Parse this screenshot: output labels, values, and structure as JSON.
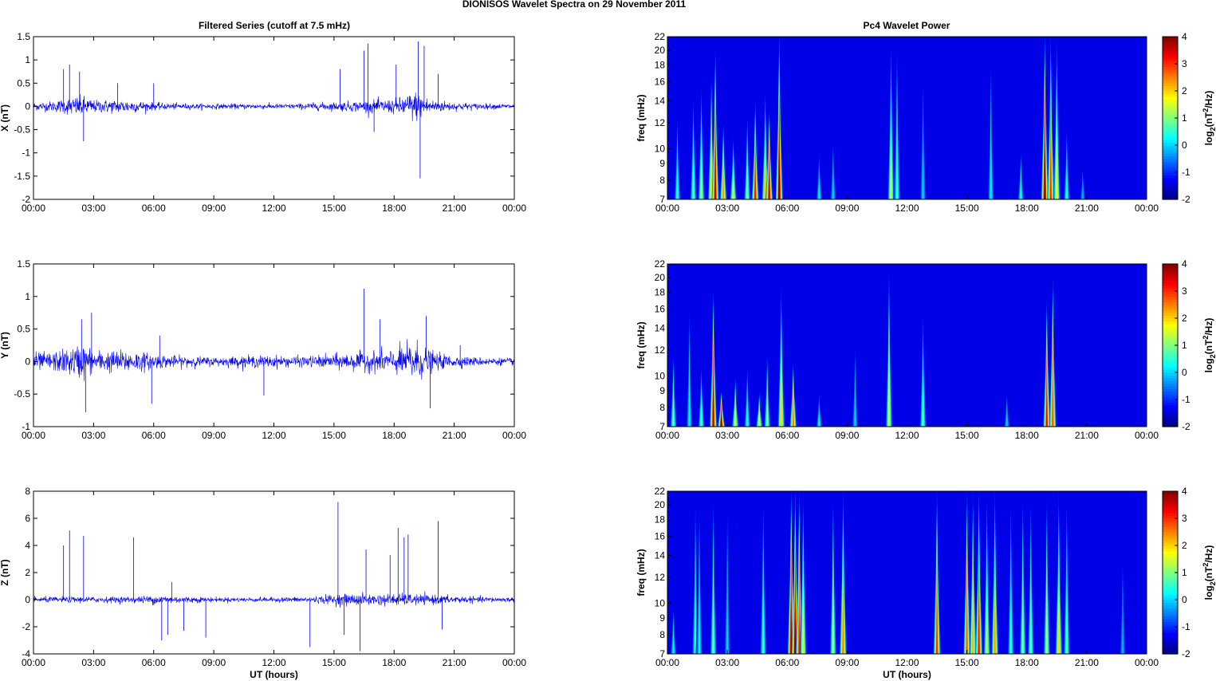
{
  "figure": {
    "suptitle": "DIONISOS Wavelet Spectra on 29 November  2011",
    "left_title": "Filtered Series (cutoff at 7.5 mHz)",
    "right_title": "Pc4 Wavelet Power",
    "time_xlabel": "UT (hours)",
    "freq_ylabel": "freq (mHz)",
    "cbar_label_prefix": "log",
    "cbar_label_sub": "2",
    "cbar_label_mid": "(nT",
    "cbar_label_sup": "2",
    "cbar_label_suffix": "/Hz)",
    "line_color": "#0000ff"
  },
  "chart_data": [
    {
      "type": "line",
      "title": "Filtered Series (cutoff at 7.5 mHz)",
      "xlabel": "",
      "ylabel": "X (nT)",
      "xlim": [
        0,
        24
      ],
      "ylim": [
        -2,
        1.5
      ],
      "x_ticks": [
        "00:00",
        "03:00",
        "06:00",
        "09:00",
        "12:00",
        "15:00",
        "18:00",
        "21:00",
        "00:00"
      ],
      "y_ticks": [
        "1.5",
        "1",
        "0.5",
        "0",
        "-0.5",
        "-1",
        "-1.5",
        "-2"
      ],
      "y_tick_values": [
        1.5,
        1,
        0.5,
        0,
        -0.5,
        -1,
        -1.5,
        -2
      ],
      "noise_profile": {
        "hours": [
          0,
          1,
          2,
          2.5,
          3,
          4,
          5,
          6,
          7,
          8,
          9,
          10,
          11,
          12,
          13,
          14,
          15,
          16,
          17,
          18,
          18.5,
          19,
          19.5,
          20,
          21,
          22,
          23,
          24
        ],
        "amplitude_nT": [
          0.08,
          0.1,
          0.18,
          0.2,
          0.12,
          0.13,
          0.12,
          0.07,
          0.06,
          0.05,
          0.05,
          0.05,
          0.05,
          0.05,
          0.05,
          0.07,
          0.08,
          0.1,
          0.12,
          0.14,
          0.2,
          0.3,
          0.2,
          0.12,
          0.08,
          0.06,
          0.05,
          0.05
        ]
      },
      "spikes": [
        {
          "hour": 1.5,
          "value": 0.8
        },
        {
          "hour": 1.8,
          "value": 0.9
        },
        {
          "hour": 2.3,
          "value": 0.75
        },
        {
          "hour": 2.5,
          "value": -0.75
        },
        {
          "hour": 4.2,
          "value": 0.5
        },
        {
          "hour": 6.0,
          "value": 0.5
        },
        {
          "hour": 15.3,
          "value": 0.8
        },
        {
          "hour": 16.5,
          "value": 1.2
        },
        {
          "hour": 16.7,
          "value": 1.35
        },
        {
          "hour": 17.0,
          "value": -0.55
        },
        {
          "hour": 18.1,
          "value": 0.9
        },
        {
          "hour": 19.2,
          "value": 1.4
        },
        {
          "hour": 19.3,
          "value": -1.55
        },
        {
          "hour": 19.5,
          "value": 1.3
        },
        {
          "hour": 20.2,
          "value": 0.7
        }
      ]
    },
    {
      "type": "line",
      "title": "",
      "xlabel": "",
      "ylabel": "Y (nT)",
      "xlim": [
        0,
        24
      ],
      "ylim": [
        -1,
        1.5
      ],
      "x_ticks": [
        "00:00",
        "03:00",
        "06:00",
        "09:00",
        "12:00",
        "15:00",
        "18:00",
        "21:00",
        "00:00"
      ],
      "y_ticks": [
        "1.5",
        "1",
        "0.5",
        "0",
        "-0.5",
        "-1"
      ],
      "y_tick_values": [
        1.5,
        1,
        0.5,
        0,
        -0.5,
        -1
      ],
      "noise_profile": {
        "hours": [
          0,
          1,
          2,
          2.5,
          3,
          4,
          5,
          6,
          7,
          8,
          9,
          10,
          11,
          12,
          13,
          14,
          15,
          16,
          17,
          18,
          18.5,
          19,
          19.5,
          20,
          21,
          22,
          23,
          24
        ],
        "amplitude_nT": [
          0.12,
          0.13,
          0.2,
          0.25,
          0.15,
          0.15,
          0.15,
          0.1,
          0.08,
          0.07,
          0.06,
          0.07,
          0.08,
          0.08,
          0.07,
          0.08,
          0.1,
          0.12,
          0.14,
          0.16,
          0.22,
          0.3,
          0.2,
          0.12,
          0.08,
          0.06,
          0.05,
          0.05
        ]
      },
      "spikes": [
        {
          "hour": 2.4,
          "value": 0.65
        },
        {
          "hour": 2.9,
          "value": 0.75
        },
        {
          "hour": 2.6,
          "value": -0.78
        },
        {
          "hour": 5.9,
          "value": -0.65
        },
        {
          "hour": 6.3,
          "value": 0.4
        },
        {
          "hour": 11.5,
          "value": -0.52
        },
        {
          "hour": 16.5,
          "value": 1.12
        },
        {
          "hour": 17.3,
          "value": 0.65
        },
        {
          "hour": 19.6,
          "value": 0.7
        },
        {
          "hour": 19.8,
          "value": -0.72
        },
        {
          "hour": 21.3,
          "value": 0.25
        }
      ]
    },
    {
      "type": "line",
      "title": "",
      "xlabel": "UT (hours)",
      "ylabel": "Z (nT)",
      "xlim": [
        0,
        24
      ],
      "ylim": [
        -4,
        8
      ],
      "x_ticks": [
        "00:00",
        "03:00",
        "06:00",
        "09:00",
        "12:00",
        "15:00",
        "18:00",
        "21:00",
        "00:00"
      ],
      "y_ticks": [
        "8",
        "6",
        "4",
        "2",
        "0",
        "-2",
        "-4"
      ],
      "y_tick_values": [
        8,
        6,
        4,
        2,
        0,
        -2,
        -4
      ],
      "noise_profile": {
        "hours": [
          0,
          3,
          5,
          6,
          7,
          9,
          12,
          14,
          15,
          16,
          17,
          18,
          19,
          20,
          21,
          22,
          24
        ],
        "amplitude_nT": [
          0.18,
          0.2,
          0.2,
          0.3,
          0.25,
          0.15,
          0.15,
          0.2,
          0.35,
          0.4,
          0.35,
          0.4,
          0.35,
          0.3,
          0.25,
          0.2,
          0.15
        ]
      },
      "spikes": [
        {
          "hour": 1.5,
          "value": 4.0
        },
        {
          "hour": 1.8,
          "value": 5.1
        },
        {
          "hour": 2.5,
          "value": 4.7
        },
        {
          "hour": 5.0,
          "value": 4.6
        },
        {
          "hour": 6.4,
          "value": -3.0
        },
        {
          "hour": 6.7,
          "value": -2.6
        },
        {
          "hour": 6.9,
          "value": 1.3
        },
        {
          "hour": 7.5,
          "value": -2.3
        },
        {
          "hour": 8.6,
          "value": -2.8
        },
        {
          "hour": 13.8,
          "value": -3.5
        },
        {
          "hour": 15.2,
          "value": 7.2
        },
        {
          "hour": 15.5,
          "value": -2.6
        },
        {
          "hour": 16.3,
          "value": -3.8
        },
        {
          "hour": 16.6,
          "value": 3.7
        },
        {
          "hour": 17.8,
          "value": 3.3
        },
        {
          "hour": 18.2,
          "value": 5.3
        },
        {
          "hour": 18.5,
          "value": 4.6
        },
        {
          "hour": 18.7,
          "value": 4.8
        },
        {
          "hour": 20.2,
          "value": 5.8
        },
        {
          "hour": 20.4,
          "value": -2.2
        }
      ]
    },
    {
      "type": "heatmap",
      "title": "Pc4 Wavelet Power",
      "xlabel": "",
      "ylabel": "freq (mHz)",
      "xlim": [
        0,
        24
      ],
      "ylim": [
        7,
        22
      ],
      "log_y": true,
      "x_ticks": [
        "00:00",
        "03:00",
        "06:00",
        "09:00",
        "12:00",
        "15:00",
        "18:00",
        "21:00",
        "00:00"
      ],
      "y_ticks": [
        "22",
        "20",
        "18",
        "16",
        "14",
        "12",
        "10",
        "9",
        "8",
        "7"
      ],
      "y_tick_values": [
        22,
        20,
        18,
        16,
        14,
        12,
        10,
        9,
        8,
        7
      ],
      "colorbar": {
        "min": -2,
        "max": 4,
        "ticks": [
          "4",
          "3",
          "2",
          "1",
          "0",
          "-1",
          "-2"
        ]
      },
      "background_level": -2,
      "bursts": [
        {
          "hour": 0.5,
          "level": 0.5,
          "top_mHz": 13
        },
        {
          "hour": 1.3,
          "level": 0.8,
          "top_mHz": 15
        },
        {
          "hour": 1.7,
          "level": 1.2,
          "top_mHz": 16
        },
        {
          "hour": 2.2,
          "level": 2.0,
          "top_mHz": 17
        },
        {
          "hour": 2.4,
          "level": 3.6,
          "top_mHz": 20
        },
        {
          "hour": 2.8,
          "level": 2.4,
          "top_mHz": 12
        },
        {
          "hour": 3.3,
          "level": 1.5,
          "top_mHz": 11
        },
        {
          "hour": 4.0,
          "level": 1.0,
          "top_mHz": 13
        },
        {
          "hour": 4.4,
          "level": 3.2,
          "top_mHz": 14
        },
        {
          "hour": 4.9,
          "level": 2.2,
          "top_mHz": 15
        },
        {
          "hour": 5.1,
          "level": 3.5,
          "top_mHz": 13
        },
        {
          "hour": 5.6,
          "level": 4.0,
          "top_mHz": 22
        },
        {
          "hour": 7.6,
          "level": 0.2,
          "top_mHz": 10
        },
        {
          "hour": 8.3,
          "level": 0.0,
          "top_mHz": 11
        },
        {
          "hour": 11.2,
          "level": 1.4,
          "top_mHz": 22
        },
        {
          "hour": 11.5,
          "level": 0.6,
          "top_mHz": 22
        },
        {
          "hour": 12.8,
          "level": 0.0,
          "top_mHz": 18
        },
        {
          "hour": 16.2,
          "level": 0.2,
          "top_mHz": 20
        },
        {
          "hour": 17.7,
          "level": 0.4,
          "top_mHz": 10
        },
        {
          "hour": 18.9,
          "level": 4.0,
          "top_mHz": 22
        },
        {
          "hour": 19.2,
          "level": 3.0,
          "top_mHz": 22
        },
        {
          "hour": 19.5,
          "level": 1.8,
          "top_mHz": 22
        },
        {
          "hour": 20.0,
          "level": 0.5,
          "top_mHz": 12
        },
        {
          "hour": 20.8,
          "level": -0.2,
          "top_mHz": 9
        }
      ]
    },
    {
      "type": "heatmap",
      "title": "",
      "xlabel": "",
      "ylabel": "freq (mHz)",
      "xlim": [
        0,
        24
      ],
      "ylim": [
        7,
        22
      ],
      "log_y": true,
      "x_ticks": [
        "00:00",
        "03:00",
        "06:00",
        "09:00",
        "12:00",
        "15:00",
        "18:00",
        "21:00",
        "00:00"
      ],
      "y_ticks": [
        "22",
        "20",
        "18",
        "16",
        "14",
        "12",
        "10",
        "9",
        "8",
        "7"
      ],
      "y_tick_values": [
        22,
        20,
        18,
        16,
        14,
        12,
        10,
        9,
        8,
        7
      ],
      "colorbar": {
        "min": -2,
        "max": 4,
        "ticks": [
          "4",
          "3",
          "2",
          "1",
          "0",
          "-1",
          "-2"
        ]
      },
      "background_level": -2,
      "bursts": [
        {
          "hour": 0.3,
          "level": 0.8,
          "top_mHz": 12
        },
        {
          "hour": 1.1,
          "level": 0.2,
          "top_mHz": 17
        },
        {
          "hour": 1.7,
          "level": 0.8,
          "top_mHz": 11
        },
        {
          "hour": 2.3,
          "level": 3.6,
          "top_mHz": 18
        },
        {
          "hour": 2.7,
          "level": 3.8,
          "top_mHz": 9
        },
        {
          "hour": 3.4,
          "level": 1.6,
          "top_mHz": 10
        },
        {
          "hour": 4.0,
          "level": 0.5,
          "top_mHz": 11
        },
        {
          "hour": 4.6,
          "level": 1.6,
          "top_mHz": 9
        },
        {
          "hour": 5.0,
          "level": 1.0,
          "top_mHz": 12
        },
        {
          "hour": 5.7,
          "level": 2.0,
          "top_mHz": 19
        },
        {
          "hour": 6.3,
          "level": 2.6,
          "top_mHz": 11
        },
        {
          "hour": 7.6,
          "level": 0.3,
          "top_mHz": 9
        },
        {
          "hour": 9.4,
          "level": 0.0,
          "top_mHz": 13
        },
        {
          "hour": 11.1,
          "level": 1.4,
          "top_mHz": 22
        },
        {
          "hour": 12.8,
          "level": 0.8,
          "top_mHz": 16
        },
        {
          "hour": 17.0,
          "level": 0.0,
          "top_mHz": 9
        },
        {
          "hour": 19.0,
          "level": 3.2,
          "top_mHz": 17
        },
        {
          "hour": 19.3,
          "level": 2.8,
          "top_mHz": 20
        }
      ]
    },
    {
      "type": "heatmap",
      "title": "",
      "xlabel": "UT (hours)",
      "ylabel": "freq (mHz)",
      "xlim": [
        0,
        24
      ],
      "ylim": [
        7,
        22
      ],
      "log_y": true,
      "x_ticks": [
        "00:00",
        "03:00",
        "06:00",
        "09:00",
        "12:00",
        "15:00",
        "18:00",
        "21:00",
        "00:00"
      ],
      "y_ticks": [
        "22",
        "20",
        "18",
        "16",
        "14",
        "12",
        "10",
        "9",
        "8",
        "7"
      ],
      "y_tick_values": [
        22,
        20,
        18,
        16,
        14,
        12,
        10,
        9,
        8,
        7
      ],
      "colorbar": {
        "min": -2,
        "max": 4,
        "ticks": [
          "4",
          "3",
          "2",
          "1",
          "0",
          "-1",
          "-2"
        ]
      },
      "background_level": -2,
      "bursts": [
        {
          "hour": 0.3,
          "level": 0.2,
          "top_mHz": 10
        },
        {
          "hour": 1.4,
          "level": 0.6,
          "top_mHz": 22
        },
        {
          "hour": 1.6,
          "level": 0.2,
          "top_mHz": 22
        },
        {
          "hour": 2.3,
          "level": 0.8,
          "top_mHz": 22
        },
        {
          "hour": 3.0,
          "level": 0.0,
          "top_mHz": 22
        },
        {
          "hour": 4.8,
          "level": 0.6,
          "top_mHz": 22
        },
        {
          "hour": 6.2,
          "level": 3.8,
          "top_mHz": 22
        },
        {
          "hour": 6.4,
          "level": 4.0,
          "top_mHz": 22
        },
        {
          "hour": 6.6,
          "level": 3.0,
          "top_mHz": 22
        },
        {
          "hour": 6.8,
          "level": 1.6,
          "top_mHz": 22
        },
        {
          "hour": 8.3,
          "level": 1.2,
          "top_mHz": 22
        },
        {
          "hour": 8.8,
          "level": 2.6,
          "top_mHz": 22
        },
        {
          "hour": 13.5,
          "level": 3.0,
          "top_mHz": 22
        },
        {
          "hour": 15.0,
          "level": 2.8,
          "top_mHz": 22
        },
        {
          "hour": 15.3,
          "level": 2.2,
          "top_mHz": 22
        },
        {
          "hour": 15.6,
          "level": 3.2,
          "top_mHz": 22
        },
        {
          "hour": 16.0,
          "level": 1.4,
          "top_mHz": 22
        },
        {
          "hour": 16.4,
          "level": 2.4,
          "top_mHz": 22
        },
        {
          "hour": 17.2,
          "level": 0.6,
          "top_mHz": 22
        },
        {
          "hour": 17.8,
          "level": 1.0,
          "top_mHz": 22
        },
        {
          "hour": 18.2,
          "level": 0.8,
          "top_mHz": 22
        },
        {
          "hour": 19.0,
          "level": 1.2,
          "top_mHz": 22
        },
        {
          "hour": 19.6,
          "level": 2.0,
          "top_mHz": 22
        },
        {
          "hour": 20.0,
          "level": 0.8,
          "top_mHz": 22
        },
        {
          "hour": 22.8,
          "level": -0.2,
          "top_mHz": 15
        }
      ]
    }
  ]
}
